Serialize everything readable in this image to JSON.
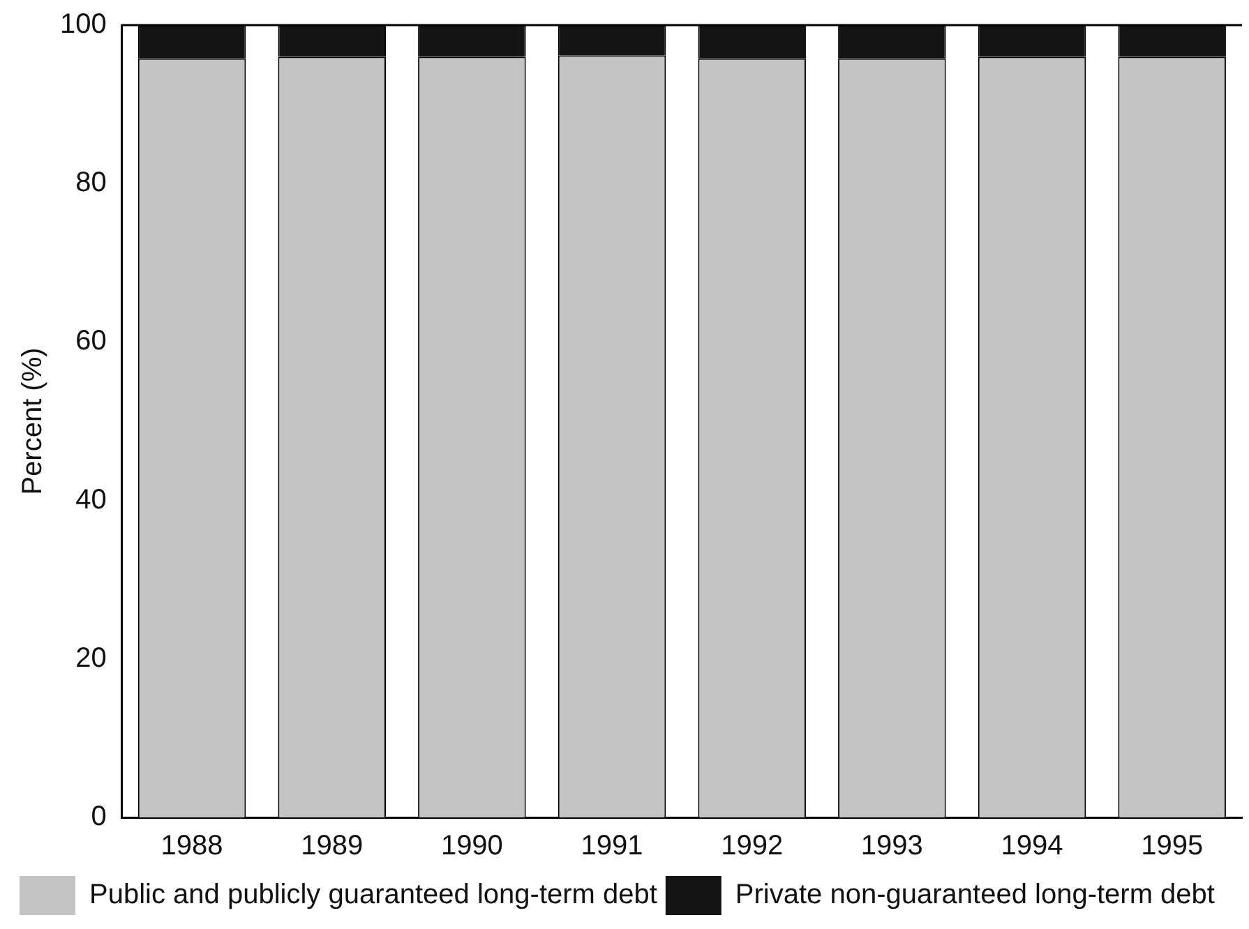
{
  "chart_data": {
    "type": "bar",
    "stacked": true,
    "ylabel": "Percent (%)",
    "categories": [
      "1988",
      "1989",
      "1990",
      "1991",
      "1992",
      "1993",
      "1994",
      "1995"
    ],
    "series": [
      {
        "name": "Public and publicly guaranteed long-term debt",
        "color": "#c4c4c4",
        "values": [
          95.8,
          96,
          96,
          96.2,
          95.8,
          95.8,
          96,
          96
        ]
      },
      {
        "name": "Private non-guaranteed long-term debt",
        "color": "#141414",
        "values": [
          4.2,
          4,
          4,
          3.8,
          4.2,
          4.2,
          4,
          4
        ]
      }
    ],
    "ylim": [
      0,
      100
    ],
    "yticks": [
      0,
      20,
      40,
      60,
      80,
      100
    ],
    "grid": false,
    "legend": "bottom left"
  }
}
